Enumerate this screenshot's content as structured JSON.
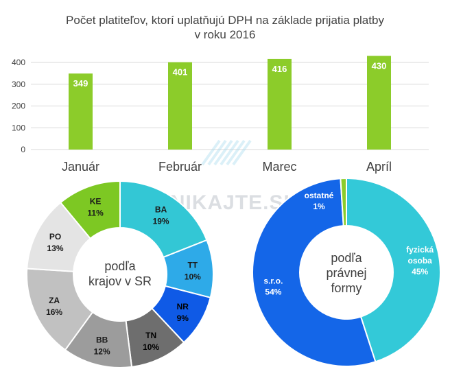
{
  "chart_data": [
    {
      "type": "bar",
      "title": "Počet platiteľov, ktorí uplatňujú DPH na základe prijatia platby",
      "subtitle": "v roku 2016",
      "categories": [
        "Január",
        "Február",
        "Marec",
        "Apríl"
      ],
      "values": [
        349,
        401,
        416,
        430
      ],
      "data_labels": [
        "349",
        "401",
        "416",
        "430"
      ],
      "ylim": [
        0,
        400
      ],
      "yticks": [
        "0",
        "100",
        "200",
        "300",
        "400"
      ],
      "grid": true,
      "color": "#8ccc2a"
    },
    {
      "type": "pie",
      "center_label": [
        "podľa",
        "krajov v SR"
      ],
      "slices": [
        {
          "label": "BA",
          "value": 19,
          "text": "19%",
          "color": "#33c7d5"
        },
        {
          "label": "TT",
          "value": 10,
          "text": "10%",
          "color": "#2eaae8"
        },
        {
          "label": "NR",
          "value": 9,
          "text": "9%",
          "color": "#0f5ae6"
        },
        {
          "label": "TN",
          "value": 10,
          "text": "10%",
          "color": "#6e6e6e"
        },
        {
          "label": "BB",
          "value": 12,
          "text": "12%",
          "color": "#9c9c9c"
        },
        {
          "label": "ZA",
          "value": 16,
          "text": "16%",
          "color": "#c1c1c1"
        },
        {
          "label": "PO",
          "value": 13,
          "text": "13%",
          "color": "#e4e4e4"
        },
        {
          "label": "KE",
          "value": 11,
          "text": "11%",
          "color": "#7dc823"
        }
      ]
    },
    {
      "type": "pie",
      "center_label": [
        "podľa",
        "právnej",
        "formy"
      ],
      "slices": [
        {
          "label": "fyzická osoba",
          "label_lines": [
            "fyzická",
            "osoba"
          ],
          "value": 45,
          "text": "45%",
          "color": "#33c9d8"
        },
        {
          "label": "s.r.o.",
          "label_lines": [
            "s.r.o."
          ],
          "value": 54,
          "text": "54%",
          "color": "#1466e8"
        },
        {
          "label": "ostatné",
          "label_lines": [
            "ostatné"
          ],
          "value": 1,
          "text": "1%",
          "color": "#8ccc2a"
        }
      ]
    }
  ],
  "watermark": "PODNIKAJTE.SK"
}
